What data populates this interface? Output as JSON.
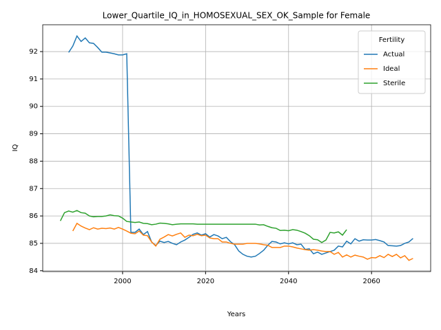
{
  "chart_data": {
    "type": "line",
    "title": "Lower_Quartile_IQ_in_HOMOSEXUAL_SEX_OK_Sample for Female",
    "xlabel": "Years",
    "ylabel": "IQ",
    "legend_title": "Fertility",
    "legend": "upper right",
    "grid": true,
    "xlim": [
      1980.75,
      2074.25
    ],
    "ylim": [
      83.97,
      92.98
    ],
    "xticks": [
      2000,
      2020,
      2040,
      2060
    ],
    "yticks": [
      84,
      85,
      86,
      87,
      88,
      89,
      90,
      91,
      92
    ],
    "x": [
      1985,
      1986,
      1987,
      1988,
      1989,
      1990,
      1991,
      1992,
      1993,
      1994,
      1995,
      1996,
      1997,
      1998,
      1999,
      2000,
      2001,
      2002,
      2003,
      2004,
      2005,
      2006,
      2007,
      2008,
      2009,
      2010,
      2011,
      2012,
      2013,
      2014,
      2015,
      2016,
      2017,
      2018,
      2019,
      2020,
      2021,
      2022,
      2023,
      2024,
      2025,
      2026,
      2027,
      2028,
      2029,
      2030,
      2031,
      2032,
      2033,
      2034,
      2035,
      2036,
      2037,
      2038,
      2039,
      2040,
      2041,
      2042,
      2043,
      2044,
      2045,
      2046,
      2047,
      2048,
      2049,
      2050,
      2051,
      2052,
      2053,
      2054,
      2055,
      2056,
      2057,
      2058,
      2059,
      2060,
      2061,
      2062,
      2063,
      2064,
      2065,
      2066,
      2067,
      2068,
      2069,
      2070
    ],
    "series": [
      {
        "name": "Actual",
        "color": "#1f77b4",
        "values": [
          null,
          null,
          91.97,
          92.2,
          92.57,
          92.37,
          92.5,
          92.32,
          92.3,
          92.15,
          91.98,
          91.98,
          91.95,
          91.92,
          91.88,
          91.88,
          91.92,
          85.4,
          85.4,
          85.52,
          85.32,
          85.43,
          85.05,
          84.92,
          85.08,
          85.03,
          85.07,
          85.0,
          84.95,
          85.05,
          85.12,
          85.22,
          85.33,
          85.38,
          85.3,
          85.35,
          85.23,
          85.32,
          85.27,
          85.17,
          85.22,
          85.06,
          84.95,
          84.72,
          84.6,
          84.53,
          84.5,
          84.53,
          84.63,
          84.75,
          84.93,
          85.07,
          85.05,
          84.98,
          85.02,
          84.98,
          85.02,
          84.95,
          84.97,
          84.78,
          84.8,
          84.62,
          84.68,
          84.6,
          84.65,
          84.7,
          84.75,
          84.9,
          84.87,
          85.08,
          84.98,
          85.17,
          85.08,
          85.13,
          85.12,
          85.12,
          85.14,
          85.1,
          85.05,
          84.92,
          84.91,
          84.9,
          84.92,
          85.0,
          85.05,
          85.18
        ]
      },
      {
        "name": "Ideal",
        "color": "#ff7f0e",
        "values": [
          null,
          null,
          null,
          85.45,
          85.73,
          85.63,
          85.56,
          85.5,
          85.57,
          85.52,
          85.55,
          85.54,
          85.56,
          85.52,
          85.58,
          85.52,
          85.45,
          85.37,
          85.35,
          85.45,
          85.3,
          85.28,
          85.05,
          84.9,
          85.15,
          85.23,
          85.32,
          85.27,
          85.33,
          85.38,
          85.22,
          85.3,
          85.28,
          85.33,
          85.28,
          85.3,
          85.2,
          85.17,
          85.17,
          85.05,
          85.05,
          85.0,
          84.97,
          84.97,
          84.97,
          85.0,
          85.0,
          85.0,
          84.98,
          84.95,
          84.93,
          84.85,
          84.85,
          84.85,
          84.9,
          84.9,
          84.87,
          84.83,
          84.8,
          84.77,
          84.75,
          84.77,
          84.75,
          84.72,
          84.7,
          84.7,
          84.6,
          84.67,
          84.5,
          84.58,
          84.5,
          84.57,
          84.53,
          84.5,
          84.42,
          84.48,
          84.47,
          84.55,
          84.48,
          84.6,
          84.52,
          84.6,
          84.47,
          84.55,
          84.38,
          84.45
        ]
      },
      {
        "name": "Sterile",
        "color": "#2ca02c",
        "values": [
          85.82,
          86.12,
          86.18,
          86.14,
          86.2,
          86.12,
          86.1,
          86.0,
          85.97,
          85.98,
          85.98,
          86.0,
          86.04,
          86.01,
          86.0,
          85.92,
          85.8,
          85.78,
          85.76,
          85.78,
          85.73,
          85.72,
          85.68,
          85.7,
          85.74,
          85.73,
          85.71,
          85.68,
          85.7,
          85.71,
          85.71,
          85.71,
          85.71,
          85.7,
          85.7,
          85.7,
          85.7,
          85.7,
          85.7,
          85.7,
          85.7,
          85.7,
          85.7,
          85.7,
          85.7,
          85.7,
          85.7,
          85.7,
          85.67,
          85.68,
          85.62,
          85.57,
          85.55,
          85.47,
          85.48,
          85.46,
          85.5,
          85.48,
          85.43,
          85.37,
          85.28,
          85.15,
          85.13,
          85.03,
          85.12,
          85.4,
          85.38,
          85.42,
          85.3,
          85.5,
          null,
          null,
          null,
          null,
          null,
          null,
          null,
          null,
          null,
          null,
          null,
          null,
          null,
          null,
          null,
          null
        ]
      }
    ]
  }
}
